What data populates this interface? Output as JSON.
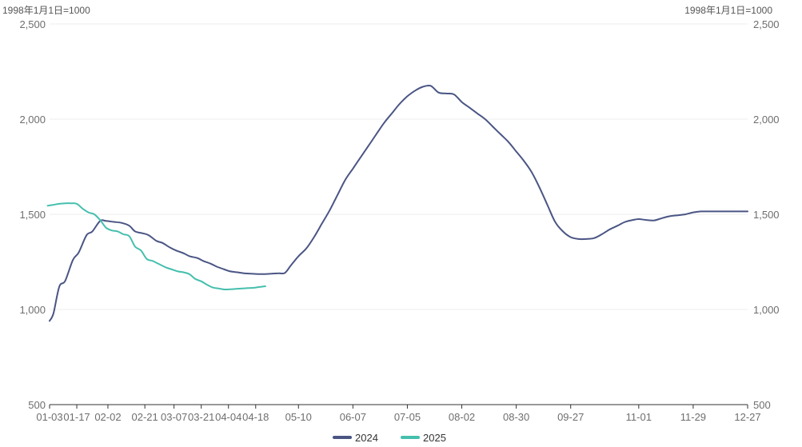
{
  "chart_data": {
    "type": "line",
    "left_axis_unit": "1998年1月1日=1000",
    "right_axis_unit": "1998年1月1日=1000",
    "ylim": [
      500,
      2500
    ],
    "yticks": [
      500,
      1000,
      1500,
      2000,
      2500
    ],
    "ytick_labels": [
      "500",
      "1,000",
      "1,500",
      "2,000",
      "2,500"
    ],
    "xlim": [
      "01-03",
      "12-27"
    ],
    "xticks": [
      "01-03",
      "01-17",
      "02-02",
      "02-21",
      "03-07",
      "03-21",
      "04-04",
      "04-18",
      "05-10",
      "06-07",
      "07-05",
      "08-02",
      "08-30",
      "09-27",
      "11-01",
      "11-29",
      "12-27"
    ],
    "legend_position": "bottom-center",
    "grid": true,
    "series": [
      {
        "name": "2024",
        "color": "#4a5584",
        "x": [
          "01-03",
          "01-05",
          "01-08",
          "01-11",
          "01-15",
          "01-18",
          "01-22",
          "01-25",
          "01-29",
          "02-01",
          "02-05",
          "02-09",
          "02-13",
          "02-16",
          "02-20",
          "02-23",
          "02-27",
          "03-01",
          "03-05",
          "03-08",
          "03-12",
          "03-15",
          "03-19",
          "03-22",
          "03-26",
          "03-29",
          "04-02",
          "04-05",
          "04-09",
          "04-12",
          "04-16",
          "04-19",
          "04-23",
          "04-26",
          "04-30",
          "05-03",
          "05-06",
          "05-10",
          "05-14",
          "05-18",
          "05-22",
          "05-26",
          "05-30",
          "06-03",
          "06-07",
          "06-11",
          "06-15",
          "06-19",
          "06-23",
          "06-27",
          "07-01",
          "07-05",
          "07-09",
          "07-13",
          "07-17",
          "07-21",
          "07-25",
          "07-29",
          "08-02",
          "08-06",
          "08-10",
          "08-14",
          "08-18",
          "08-22",
          "08-26",
          "08-30",
          "09-03",
          "09-07",
          "09-11",
          "09-15",
          "09-19",
          "09-23",
          "09-27",
          "10-01",
          "10-05",
          "10-09",
          "10-13",
          "10-17",
          "10-21",
          "10-25",
          "10-29",
          "11-01",
          "11-05",
          "11-09",
          "11-13",
          "11-17",
          "11-21",
          "11-25",
          "11-29",
          "12-03",
          "12-07",
          "12-11",
          "12-15",
          "12-19",
          "12-23",
          "12-27"
        ],
        "values": [
          940,
          980,
          1120,
          1150,
          1260,
          1300,
          1390,
          1410,
          1465,
          1465,
          1460,
          1455,
          1440,
          1410,
          1400,
          1390,
          1360,
          1350,
          1325,
          1310,
          1295,
          1280,
          1270,
          1255,
          1240,
          1225,
          1210,
          1200,
          1195,
          1190,
          1188,
          1186,
          1186,
          1188,
          1190,
          1192,
          1230,
          1280,
          1320,
          1380,
          1450,
          1520,
          1600,
          1680,
          1740,
          1800,
          1860,
          1920,
          1980,
          2030,
          2080,
          2120,
          2150,
          2170,
          2175,
          2140,
          2135,
          2130,
          2090,
          2060,
          2030,
          2000,
          1960,
          1920,
          1880,
          1830,
          1780,
          1720,
          1640,
          1550,
          1460,
          1410,
          1380,
          1370,
          1370,
          1375,
          1395,
          1420,
          1440,
          1460,
          1470,
          1475,
          1470,
          1468,
          1480,
          1490,
          1495,
          1500,
          1510,
          1515,
          1515,
          1515,
          1515,
          1515,
          1515,
          1515
        ]
      },
      {
        "name": "2025",
        "color": "#45bfae",
        "x": [
          "01-02",
          "01-05",
          "01-08",
          "01-11",
          "01-14",
          "01-17",
          "01-20",
          "01-23",
          "01-26",
          "01-29",
          "02-01",
          "02-04",
          "02-07",
          "02-10",
          "02-13",
          "02-16",
          "02-19",
          "02-22",
          "02-25",
          "02-28",
          "03-03",
          "03-06",
          "03-09",
          "03-12",
          "03-15",
          "03-18",
          "03-21",
          "03-24",
          "03-27",
          "03-30",
          "04-02",
          "04-05",
          "04-08",
          "04-11",
          "04-14",
          "04-17",
          "04-20",
          "04-23"
        ],
        "values": [
          1545,
          1550,
          1555,
          1558,
          1558,
          1555,
          1530,
          1510,
          1500,
          1470,
          1430,
          1415,
          1410,
          1395,
          1385,
          1330,
          1310,
          1265,
          1255,
          1240,
          1220,
          1210,
          1200,
          1195,
          1185,
          1160,
          1148,
          1130,
          1115,
          1110,
          1105,
          1106,
          1108,
          1110,
          1112,
          1114,
          1118,
          1122
        ]
      }
    ]
  }
}
